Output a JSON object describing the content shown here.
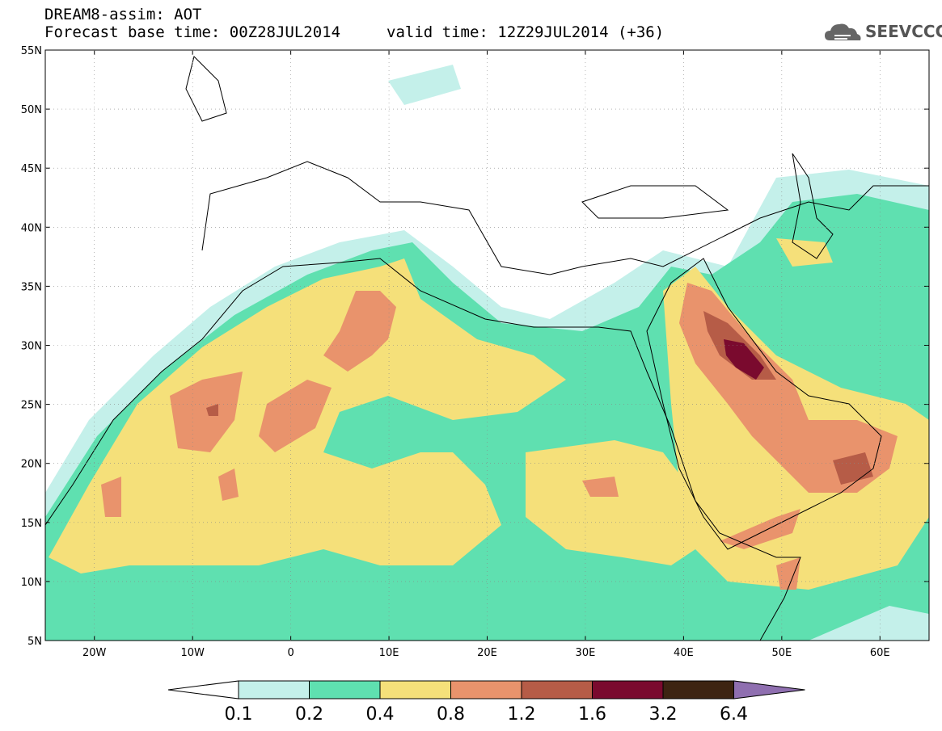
{
  "header": {
    "line1": "DREAM8-assim: AOT",
    "line2": "Forecast base time: 00Z28JUL2014",
    "valid": "valid time: 12Z29JUL2014 (+36)",
    "logo_text": "SEEVCCC",
    "logo_icon": "cloud-icon"
  },
  "map": {
    "lon_range": [
      -25,
      65
    ],
    "lat_range": [
      5,
      55
    ],
    "lat_labels": [
      "55N",
      "50N",
      "45N",
      "40N",
      "35N",
      "30N",
      "25N",
      "20N",
      "15N",
      "10N",
      "5N"
    ],
    "lon_labels": [
      "20W",
      "10W",
      "0",
      "10E",
      "20E",
      "30E",
      "40E",
      "50E",
      "60E"
    ]
  },
  "legend": {
    "labels": [
      "0.1",
      "0.2",
      "0.4",
      "0.8",
      "1.2",
      "1.6",
      "3.2",
      "6.4"
    ],
    "colors": [
      "#ffffff",
      "#c4f0ea",
      "#5fe0b0",
      "#f5e07a",
      "#e9936c",
      "#b65c47",
      "#7a0a2e",
      "#3d2412",
      "#8f6fb0"
    ]
  }
}
